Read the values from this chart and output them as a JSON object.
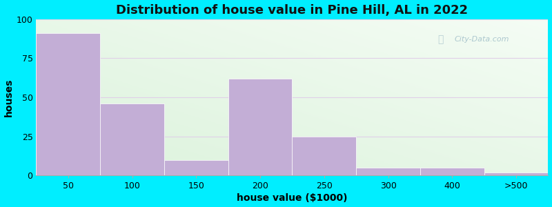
{
  "title": "Distribution of house value in Pine Hill, AL in 2022",
  "xlabel": "house value ($1000)",
  "ylabel": "houses",
  "bar_labels": [
    "50",
    "100",
    "150",
    "200",
    "250",
    "300",
    "400",
    ">500"
  ],
  "bar_values": [
    91,
    46,
    10,
    62,
    25,
    5,
    5,
    2
  ],
  "bar_color": "#c3aed6",
  "bar_edgecolor": "#ffffff",
  "bar_linewidth": 0.5,
  "ylim": [
    0,
    100
  ],
  "yticks": [
    0,
    25,
    50,
    75,
    100
  ],
  "background_outer": "#00eeff",
  "title_fontsize": 13,
  "axis_fontsize": 10,
  "tick_fontsize": 9,
  "watermark": "City-Data.com",
  "grid_color": "#dde8cc",
  "grid_linewidth": 0.8
}
